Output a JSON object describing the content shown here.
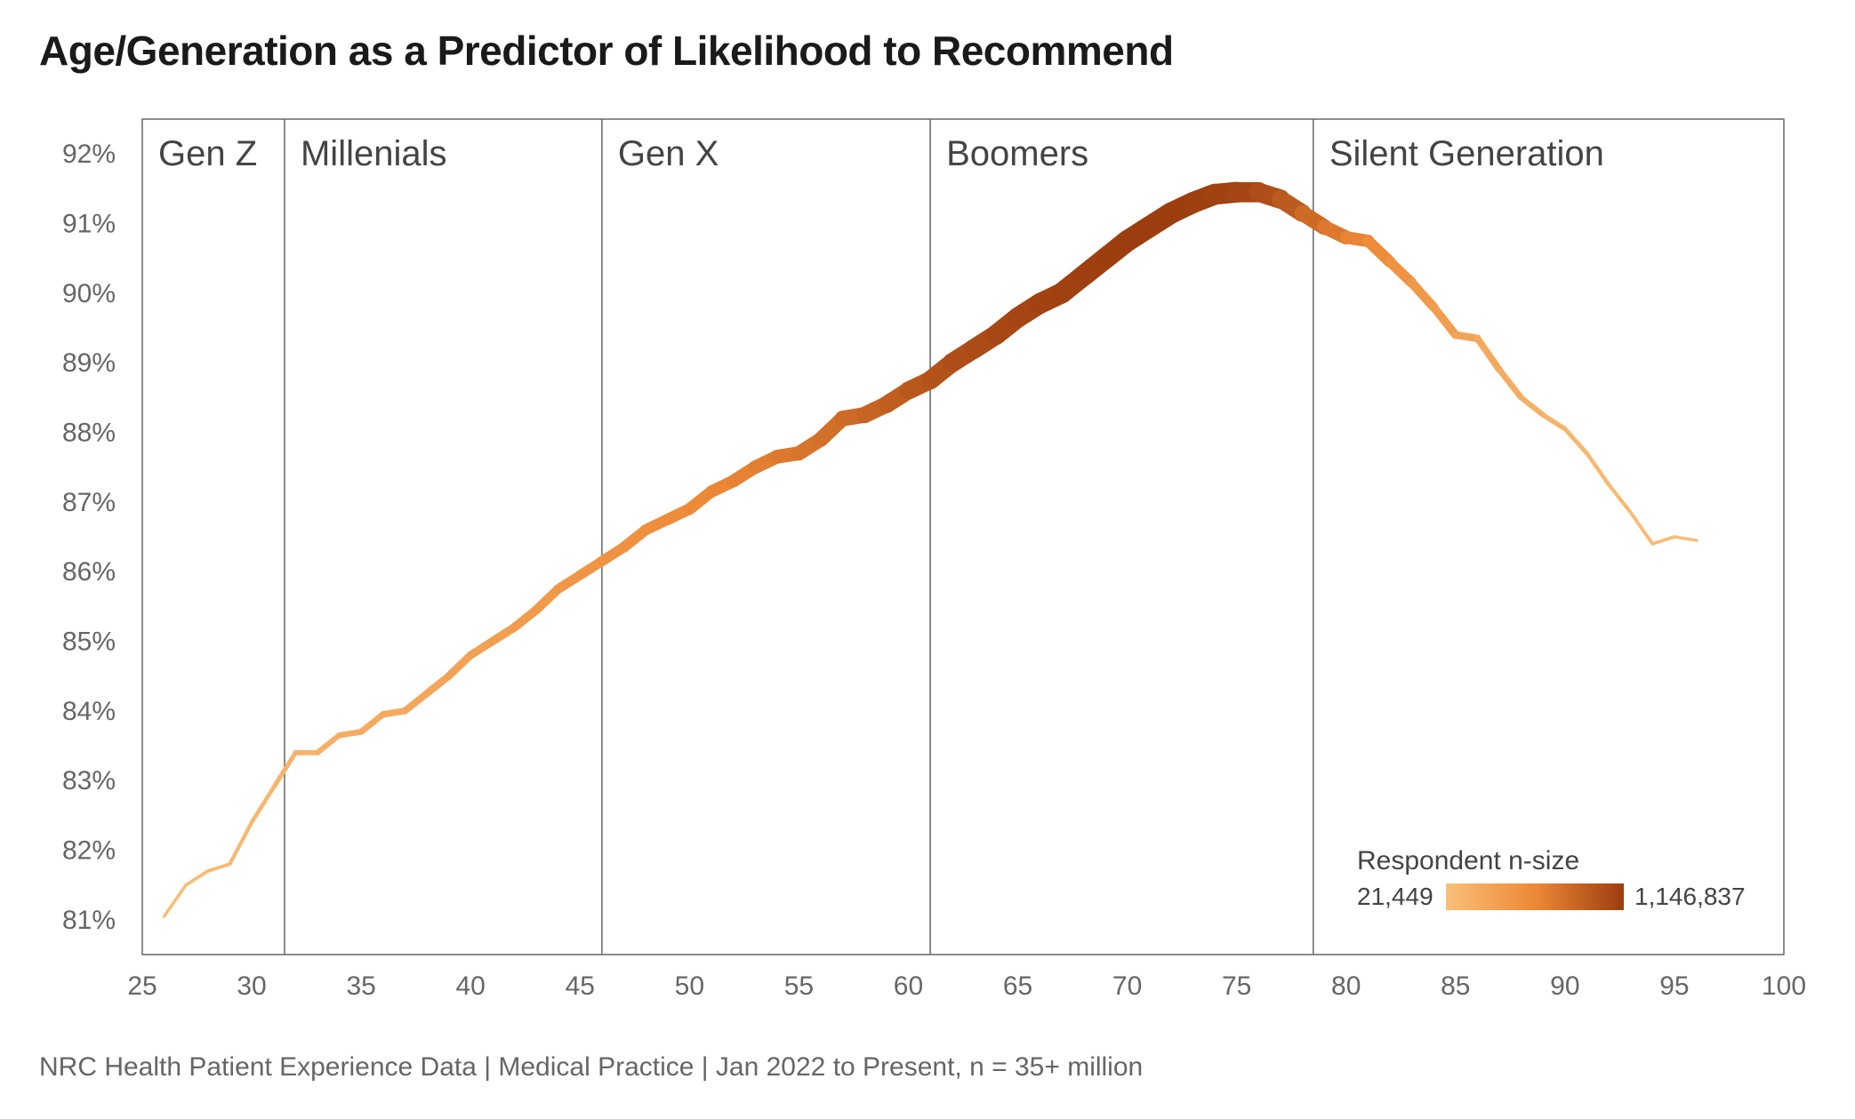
{
  "title": "Age/Generation as a Predictor of Likelihood to Recommend",
  "footnote": "NRC Health Patient Experience Data | Medical Practice | Jan 2022 to Present, n = 35+ million",
  "chart": {
    "type": "line",
    "background_color": "#ffffff",
    "grid_color": "#ffffff",
    "axis_color": "#666666",
    "x_domain": [
      25,
      100
    ],
    "y_domain": [
      80.5,
      92.5
    ],
    "y_ticks": [
      81,
      82,
      83,
      84,
      85,
      86,
      87,
      88,
      89,
      90,
      91,
      92
    ],
    "y_tick_suffix": "%",
    "x_ticks": [
      25,
      30,
      35,
      40,
      45,
      50,
      55,
      60,
      65,
      70,
      75,
      80,
      85,
      90,
      95,
      100
    ],
    "title_fontsize": 46,
    "tick_fontsize": 30,
    "generation_label_fontsize": 40,
    "font_family": "Helvetica Neue, Arial, sans-serif",
    "line_width_min": 3,
    "line_width_max": 24,
    "color_gradient": {
      "min_color": "#f9c07a",
      "mid_color": "#ed8936",
      "max_color": "#9c3d0f"
    },
    "generations": [
      {
        "label": "Gen Z",
        "x_start": 25,
        "x_end": 31.5
      },
      {
        "label": "Millenials",
        "x_start": 31.5,
        "x_end": 46
      },
      {
        "label": "Gen X",
        "x_start": 46,
        "x_end": 61
      },
      {
        "label": "Boomers",
        "x_start": 61,
        "x_end": 78.5
      },
      {
        "label": "Silent Generation",
        "x_start": 78.5,
        "x_end": 100
      }
    ],
    "series": {
      "points": [
        {
          "x": 26,
          "y": 81.05,
          "n": 0.02
        },
        {
          "x": 27,
          "y": 81.5,
          "n": 0.03
        },
        {
          "x": 28,
          "y": 81.7,
          "n": 0.04
        },
        {
          "x": 29,
          "y": 81.8,
          "n": 0.05
        },
        {
          "x": 30,
          "y": 82.4,
          "n": 0.07
        },
        {
          "x": 31,
          "y": 82.9,
          "n": 0.09
        },
        {
          "x": 32,
          "y": 83.4,
          "n": 0.12
        },
        {
          "x": 33,
          "y": 83.4,
          "n": 0.14
        },
        {
          "x": 34,
          "y": 83.65,
          "n": 0.16
        },
        {
          "x": 35,
          "y": 83.7,
          "n": 0.18
        },
        {
          "x": 36,
          "y": 83.95,
          "n": 0.2
        },
        {
          "x": 37,
          "y": 84.0,
          "n": 0.22
        },
        {
          "x": 38,
          "y": 84.25,
          "n": 0.24
        },
        {
          "x": 39,
          "y": 84.5,
          "n": 0.26
        },
        {
          "x": 40,
          "y": 84.8,
          "n": 0.28
        },
        {
          "x": 41,
          "y": 85.0,
          "n": 0.3
        },
        {
          "x": 42,
          "y": 85.2,
          "n": 0.32
        },
        {
          "x": 43,
          "y": 85.45,
          "n": 0.34
        },
        {
          "x": 44,
          "y": 85.75,
          "n": 0.36
        },
        {
          "x": 45,
          "y": 85.95,
          "n": 0.38
        },
        {
          "x": 46,
          "y": 86.15,
          "n": 0.4
        },
        {
          "x": 47,
          "y": 86.35,
          "n": 0.42
        },
        {
          "x": 48,
          "y": 86.6,
          "n": 0.44
        },
        {
          "x": 49,
          "y": 86.75,
          "n": 0.46
        },
        {
          "x": 50,
          "y": 86.9,
          "n": 0.48
        },
        {
          "x": 51,
          "y": 87.15,
          "n": 0.5
        },
        {
          "x": 52,
          "y": 87.3,
          "n": 0.53
        },
        {
          "x": 53,
          "y": 87.5,
          "n": 0.56
        },
        {
          "x": 54,
          "y": 87.65,
          "n": 0.59
        },
        {
          "x": 55,
          "y": 87.7,
          "n": 0.62
        },
        {
          "x": 56,
          "y": 87.9,
          "n": 0.65
        },
        {
          "x": 57,
          "y": 88.2,
          "n": 0.68
        },
        {
          "x": 58,
          "y": 88.25,
          "n": 0.72
        },
        {
          "x": 59,
          "y": 88.4,
          "n": 0.76
        },
        {
          "x": 60,
          "y": 88.6,
          "n": 0.8
        },
        {
          "x": 61,
          "y": 88.75,
          "n": 0.84
        },
        {
          "x": 62,
          "y": 89.0,
          "n": 0.87
        },
        {
          "x": 63,
          "y": 89.2,
          "n": 0.9
        },
        {
          "x": 64,
          "y": 89.4,
          "n": 0.92
        },
        {
          "x": 65,
          "y": 89.65,
          "n": 0.94
        },
        {
          "x": 66,
          "y": 89.85,
          "n": 0.96
        },
        {
          "x": 67,
          "y": 90.0,
          "n": 0.97
        },
        {
          "x": 68,
          "y": 90.25,
          "n": 0.98
        },
        {
          "x": 69,
          "y": 90.5,
          "n": 0.99
        },
        {
          "x": 70,
          "y": 90.75,
          "n": 1.0
        },
        {
          "x": 71,
          "y": 90.95,
          "n": 1.0
        },
        {
          "x": 72,
          "y": 91.15,
          "n": 1.0
        },
        {
          "x": 73,
          "y": 91.3,
          "n": 0.99
        },
        {
          "x": 74,
          "y": 91.42,
          "n": 0.98
        },
        {
          "x": 75,
          "y": 91.45,
          "n": 0.96
        },
        {
          "x": 76,
          "y": 91.45,
          "n": 0.92
        },
        {
          "x": 77,
          "y": 91.35,
          "n": 0.85
        },
        {
          "x": 78,
          "y": 91.15,
          "n": 0.75
        },
        {
          "x": 79,
          "y": 90.95,
          "n": 0.65
        },
        {
          "x": 80,
          "y": 90.8,
          "n": 0.56
        },
        {
          "x": 81,
          "y": 90.75,
          "n": 0.5
        },
        {
          "x": 82,
          "y": 90.45,
          "n": 0.44
        },
        {
          "x": 83,
          "y": 90.15,
          "n": 0.38
        },
        {
          "x": 84,
          "y": 89.8,
          "n": 0.33
        },
        {
          "x": 85,
          "y": 89.4,
          "n": 0.28
        },
        {
          "x": 86,
          "y": 89.35,
          "n": 0.24
        },
        {
          "x": 87,
          "y": 88.9,
          "n": 0.2
        },
        {
          "x": 88,
          "y": 88.5,
          "n": 0.16
        },
        {
          "x": 89,
          "y": 88.25,
          "n": 0.13
        },
        {
          "x": 90,
          "y": 88.05,
          "n": 0.1
        },
        {
          "x": 91,
          "y": 87.7,
          "n": 0.08
        },
        {
          "x": 92,
          "y": 87.25,
          "n": 0.06
        },
        {
          "x": 93,
          "y": 86.85,
          "n": 0.05
        },
        {
          "x": 94,
          "y": 86.4,
          "n": 0.04
        },
        {
          "x": 95,
          "y": 86.5,
          "n": 0.03
        },
        {
          "x": 96,
          "y": 86.45,
          "n": 0.02
        }
      ]
    },
    "legend": {
      "title": "Respondent n-size",
      "min_label": "21,449",
      "max_label": "1,146,837"
    }
  }
}
